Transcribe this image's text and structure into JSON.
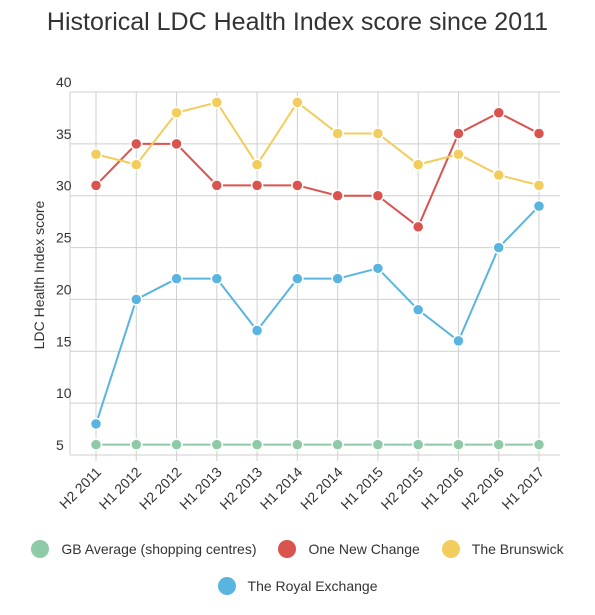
{
  "chart_data": {
    "type": "line",
    "title": "Historical LDC Health Index score since 2011",
    "xlabel": "",
    "ylabel": "LDC Health Index score",
    "categories": [
      "H2 2011",
      "H1 2012",
      "H2 2012",
      "H1 2013",
      "H2 2013",
      "H1 2014",
      "H2 2014",
      "H1 2015",
      "H2 2015",
      "H1 2016",
      "H2 2016",
      "H1 2017"
    ],
    "yticks": [
      5,
      10,
      15,
      20,
      25,
      30,
      35,
      40
    ],
    "ylim": [
      5,
      40
    ],
    "grid": true,
    "legend_position": "bottom",
    "series": [
      {
        "name": "GB Average (shopping centres)",
        "color": "#8fcaa6",
        "values": [
          6,
          6,
          6,
          6,
          6,
          6,
          6,
          6,
          6,
          6,
          6,
          6
        ]
      },
      {
        "name": "One New Change",
        "color": "#d9534f",
        "values": [
          31,
          35,
          35,
          31,
          31,
          31,
          30,
          30,
          27,
          36,
          38,
          36
        ]
      },
      {
        "name": "The Brunswick",
        "color": "#f2cc5c",
        "values": [
          34,
          33,
          38,
          39,
          33,
          39,
          36,
          36,
          33,
          34,
          32,
          31
        ]
      },
      {
        "name": "The Royal Exchange",
        "color": "#5ab4e0",
        "values": [
          8,
          20,
          22,
          22,
          17,
          22,
          22,
          23,
          19,
          16,
          25,
          29
        ]
      }
    ]
  }
}
